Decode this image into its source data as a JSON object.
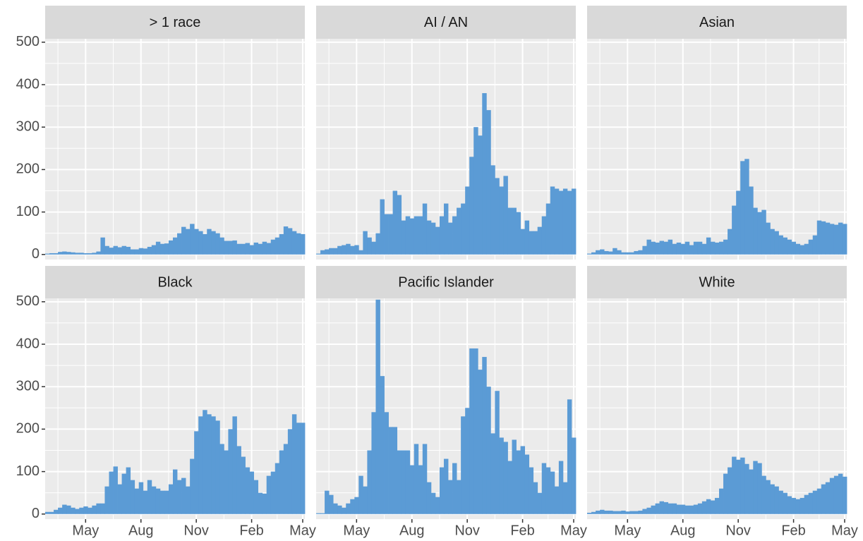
{
  "chart_data": {
    "type": "bar",
    "color": "#5b9bd5",
    "grid": true,
    "categories": [
      null,
      null,
      null,
      null,
      null,
      null,
      null,
      null,
      null,
      "May",
      null,
      null,
      null,
      null,
      null,
      null,
      null,
      null,
      null,
      null,
      null,
      null,
      "Aug",
      null,
      null,
      null,
      null,
      null,
      null,
      null,
      null,
      null,
      null,
      null,
      null,
      "Nov",
      null,
      null,
      null,
      null,
      null,
      null,
      null,
      null,
      null,
      null,
      null,
      null,
      "Feb",
      null,
      null,
      null,
      null,
      null,
      null,
      null,
      null,
      null,
      null,
      null,
      "May"
    ],
    "ylim": [
      -12,
      508
    ],
    "yticks": [
      0,
      100,
      200,
      300,
      400,
      500
    ],
    "y_minor_ticks": [
      50,
      150,
      250,
      350,
      450
    ],
    "facets": [
      {
        "title": "> 1 race",
        "values": [
          2,
          3,
          3,
          6,
          7,
          6,
          5,
          4,
          4,
          3,
          3,
          4,
          7,
          40,
          20,
          16,
          20,
          17,
          20,
          18,
          12,
          12,
          15,
          14,
          18,
          22,
          30,
          25,
          26,
          33,
          40,
          50,
          65,
          60,
          72,
          60,
          55,
          48,
          60,
          55,
          50,
          40,
          32,
          32,
          33,
          25,
          25,
          27,
          22,
          28,
          25,
          30,
          27,
          35,
          40,
          48,
          66,
          62,
          55,
          50,
          48
        ]
      },
      {
        "title": "AI / AN",
        "values": [
          2,
          10,
          12,
          15,
          15,
          20,
          22,
          25,
          20,
          22,
          10,
          55,
          40,
          30,
          50,
          130,
          95,
          95,
          150,
          140,
          80,
          90,
          85,
          90,
          90,
          120,
          80,
          75,
          65,
          90,
          120,
          75,
          90,
          110,
          120,
          160,
          230,
          300,
          280,
          380,
          340,
          210,
          180,
          160,
          185,
          110,
          110,
          100,
          60,
          80,
          55,
          55,
          65,
          90,
          120,
          160,
          155,
          150,
          155,
          150,
          155
        ]
      },
      {
        "title": "Asian",
        "values": [
          2,
          5,
          10,
          12,
          8,
          7,
          15,
          10,
          5,
          5,
          5,
          8,
          10,
          20,
          35,
          30,
          28,
          32,
          30,
          35,
          25,
          28,
          25,
          30,
          22,
          30,
          30,
          25,
          40,
          30,
          28,
          30,
          35,
          60,
          115,
          150,
          220,
          225,
          160,
          110,
          100,
          105,
          75,
          60,
          55,
          45,
          40,
          35,
          30,
          25,
          22,
          25,
          35,
          45,
          80,
          78,
          75,
          72,
          70,
          75,
          72
        ]
      },
      {
        "title": "Black",
        "values": [
          5,
          5,
          10,
          15,
          22,
          20,
          15,
          12,
          15,
          18,
          15,
          20,
          25,
          25,
          65,
          100,
          112,
          70,
          95,
          110,
          80,
          60,
          75,
          55,
          80,
          65,
          60,
          55,
          55,
          70,
          105,
          80,
          85,
          65,
          130,
          195,
          230,
          245,
          235,
          230,
          220,
          165,
          150,
          200,
          230,
          160,
          135,
          110,
          100,
          80,
          50,
          48,
          90,
          100,
          120,
          150,
          165,
          200,
          235,
          215,
          215
        ]
      },
      {
        "title": "Pacific Islander",
        "values": [
          2,
          2,
          55,
          45,
          25,
          20,
          15,
          25,
          35,
          40,
          90,
          65,
          150,
          240,
          505,
          325,
          240,
          205,
          205,
          150,
          150,
          150,
          115,
          165,
          115,
          165,
          75,
          50,
          40,
          110,
          130,
          80,
          120,
          80,
          230,
          250,
          390,
          390,
          340,
          370,
          300,
          190,
          290,
          180,
          170,
          125,
          175,
          150,
          160,
          140,
          110,
          75,
          50,
          120,
          110,
          100,
          65,
          125,
          75,
          270,
          180
        ]
      },
      {
        "title": "White",
        "values": [
          3,
          5,
          8,
          10,
          8,
          8,
          7,
          7,
          8,
          6,
          7,
          7,
          8,
          12,
          15,
          20,
          25,
          30,
          28,
          25,
          25,
          22,
          22,
          20,
          20,
          22,
          25,
          30,
          35,
          32,
          38,
          60,
          95,
          110,
          135,
          128,
          133,
          118,
          105,
          125,
          120,
          90,
          80,
          70,
          65,
          55,
          50,
          42,
          38,
          35,
          38,
          45,
          50,
          55,
          60,
          70,
          75,
          85,
          90,
          95,
          88
        ]
      }
    ]
  }
}
